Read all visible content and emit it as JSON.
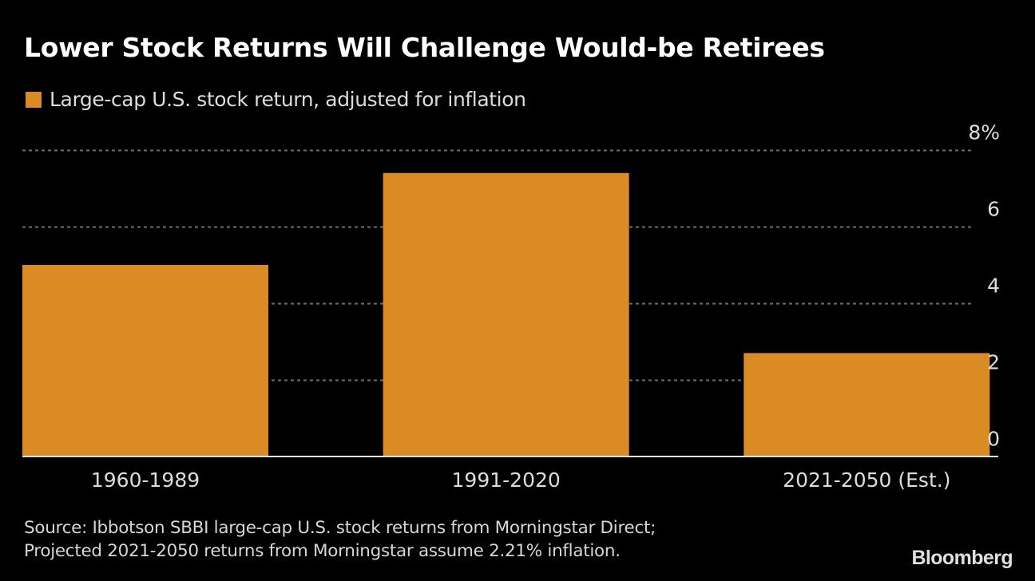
{
  "title": "Lower Stock Returns Will Challenge Would-be Retirees",
  "source_lines": [
    "Source: Ibbotson SBBI large-cap U.S. stock returns from Morningstar Direct;",
    "Projected 2021-2050 returns from Morningstar assume 2.21% inflation."
  ],
  "brand": "Bloomberg",
  "colors": {
    "background": "#000000",
    "bar": "#db8b24",
    "grid": "#6e6e6e",
    "axis": "#e6e6e6",
    "text": "#dcdcdc"
  },
  "chart_data": {
    "type": "bar",
    "title": "Lower Stock Returns Will Challenge Would-be Retirees",
    "categories": [
      "1960-1989",
      "1991-2020",
      "2021-2050 (Est.)"
    ],
    "series": [
      {
        "name": "Large-cap U.S. stock return, adjusted for inflation",
        "values": [
          5.0,
          7.4,
          2.7
        ]
      }
    ],
    "xlabel": "",
    "ylabel": "",
    "ylim": [
      0,
      8
    ],
    "yticks": [
      0,
      2,
      4,
      6,
      8
    ],
    "ytick_labels": [
      "0",
      "2",
      "4",
      "6",
      "8%"
    ],
    "y_axis_position": "right",
    "grid": true,
    "grid_style": "dotted",
    "legend": {
      "placement": "top-left",
      "entries": [
        "Large-cap U.S. stock return, adjusted for inflation"
      ]
    }
  }
}
